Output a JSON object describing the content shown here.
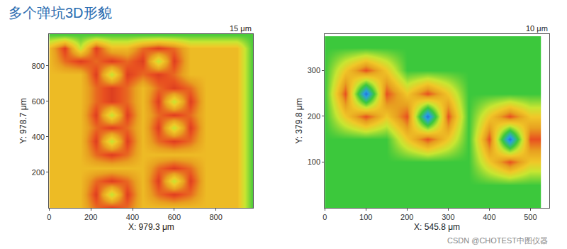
{
  "title": "多个弹坑3D形貌",
  "watermark": "CSDN @CHOTEST中图仪器",
  "chart_data": [
    {
      "type": "heatmap",
      "x_label": "X: 979.3 μm",
      "y_label": "Y: 978.7 μm",
      "z_label": "15 μm",
      "xlim": [
        0,
        979.3
      ],
      "ylim": [
        0,
        978.7
      ],
      "zlim": [
        0,
        15
      ],
      "xticks": [
        0,
        200,
        400,
        600,
        800
      ],
      "yticks": [
        200,
        400,
        600,
        800
      ],
      "grid": false,
      "x": [
        0,
        75,
        150,
        225,
        300,
        375,
        450,
        525,
        600,
        675,
        750,
        825,
        900,
        975
      ],
      "y": [
        0,
        75,
        150,
        225,
        300,
        375,
        450,
        525,
        600,
        675,
        750,
        825,
        900,
        975
      ],
      "z": [
        [
          11,
          11,
          11,
          13,
          14,
          13,
          11,
          11,
          11,
          11,
          11,
          11,
          11,
          7
        ],
        [
          11,
          11,
          11,
          14,
          9,
          14,
          11,
          13,
          14,
          13,
          11,
          11,
          11,
          7
        ],
        [
          11,
          11,
          11,
          13,
          14,
          13,
          11,
          14,
          9,
          14,
          11,
          11,
          11,
          7
        ],
        [
          11,
          11,
          11,
          11,
          11,
          11,
          11,
          13,
          14,
          13,
          11,
          11,
          11,
          7
        ],
        [
          11,
          11,
          11,
          13,
          14,
          13,
          11,
          11,
          11,
          11,
          11,
          11,
          11,
          7
        ],
        [
          11,
          11,
          11,
          14,
          9,
          14,
          11,
          13,
          14,
          13,
          11,
          11,
          11,
          7
        ],
        [
          11,
          11,
          11,
          13,
          14,
          13,
          11,
          14,
          9,
          14,
          11,
          11,
          11,
          7
        ],
        [
          11,
          11,
          11,
          14,
          9,
          14,
          11,
          13,
          14,
          13,
          11,
          11,
          11,
          7
        ],
        [
          11,
          11,
          11,
          13,
          14,
          13,
          11,
          14,
          9,
          14,
          11,
          11,
          11,
          7
        ],
        [
          11,
          11,
          11,
          13,
          14,
          13,
          11,
          13,
          14,
          13,
          11,
          11,
          11,
          7
        ],
        [
          11,
          11,
          11,
          14,
          9,
          14,
          13,
          14,
          13,
          11,
          11,
          11,
          11,
          7
        ],
        [
          11,
          13,
          14,
          13,
          14,
          13,
          14,
          9,
          14,
          11,
          11,
          11,
          11,
          7
        ],
        [
          11,
          14,
          9,
          14,
          11,
          11,
          13,
          14,
          13,
          11,
          11,
          11,
          11,
          7
        ],
        [
          7,
          7,
          7,
          7,
          7,
          7,
          7,
          7,
          7,
          7,
          7,
          7,
          7,
          7
        ]
      ]
    },
    {
      "type": "heatmap",
      "x_label": "X: 545.8 μm",
      "y_label": "Y: 379.8 μm",
      "z_label": "10 μm",
      "xlim": [
        0,
        545.8
      ],
      "ylim": [
        0,
        379.8
      ],
      "zlim": [
        0,
        10
      ],
      "xticks": [
        0,
        100,
        200,
        300,
        400,
        500
      ],
      "yticks": [
        100,
        200,
        300
      ],
      "grid": false,
      "x": [
        0,
        50,
        100,
        150,
        200,
        250,
        300,
        350,
        400,
        450,
        500
      ],
      "y": [
        0,
        50,
        100,
        150,
        200,
        250,
        300,
        350
      ],
      "z": [
        [
          4.5,
          4.5,
          4.5,
          4.5,
          4.5,
          4.5,
          4.5,
          4.5,
          4.5,
          4.5,
          4.5
        ],
        [
          4.5,
          4.5,
          4.5,
          4.5,
          4.5,
          4.5,
          4.5,
          4.5,
          4.5,
          4.5,
          4.5
        ],
        [
          4.5,
          4.5,
          4.5,
          4.5,
          4.5,
          4.5,
          4.5,
          4.5,
          7,
          9,
          7
        ],
        [
          4.5,
          4.5,
          4.5,
          4.5,
          7,
          9,
          7,
          4.5,
          9,
          1.5,
          9
        ],
        [
          4.5,
          7,
          9,
          7,
          9,
          1.5,
          9,
          4.5,
          7,
          9,
          7
        ],
        [
          4.5,
          9,
          1.5,
          9,
          7,
          9,
          7,
          4.5,
          4.5,
          4.5,
          4.5
        ],
        [
          4.5,
          7,
          9,
          7,
          4.5,
          4.5,
          4.5,
          4.5,
          4.5,
          4.5,
          4.5
        ],
        [
          4.5,
          4.5,
          4.5,
          4.5,
          4.5,
          4.5,
          4.5,
          4.5,
          4.5,
          4.5,
          4.5
        ]
      ]
    }
  ]
}
